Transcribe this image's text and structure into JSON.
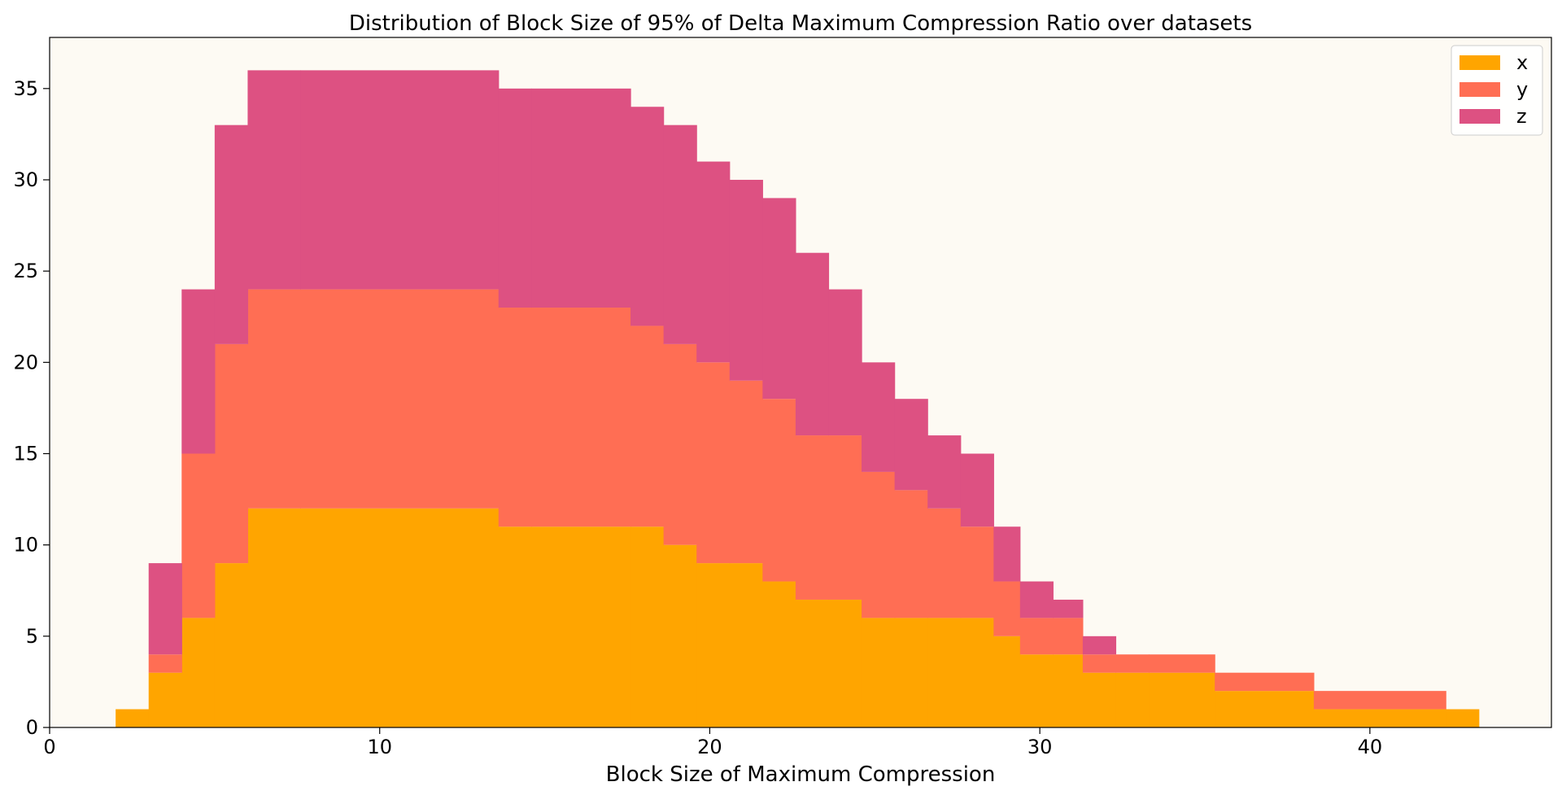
{
  "chart_data": {
    "type": "bar",
    "stacked": true,
    "histogram": true,
    "title": "Distribution of Block Size of 95% of Delta Maximum Compression Ratio over datasets",
    "xlabel": "Block Size of Maximum Compression",
    "ylabel": "",
    "xlim": [
      0,
      45.5
    ],
    "ylim": [
      0,
      37.8
    ],
    "xticks": [
      0,
      10,
      20,
      30,
      40
    ],
    "yticks": [
      0,
      5,
      10,
      15,
      20,
      25,
      30,
      35
    ],
    "grid": false,
    "legend_position": "top-right",
    "background_color": "#fdfaf3",
    "bin_edges": [
      2.0,
      3.0,
      4.0,
      5.0,
      6.0,
      7.6,
      13.6,
      14.6,
      17.6,
      18.6,
      19.6,
      20.6,
      21.6,
      22.6,
      23.6,
      24.6,
      25.6,
      26.6,
      27.6,
      28.6,
      29.4,
      30.4,
      31.3,
      32.3,
      33.3,
      35.3,
      38.3,
      42.3,
      43.3
    ],
    "series": [
      {
        "name": "x",
        "color": "#ffa500",
        "values": [
          1,
          3,
          6,
          9,
          12,
          12,
          11,
          11,
          11,
          10,
          9,
          9,
          8,
          7,
          7,
          6,
          6,
          6,
          6,
          5,
          4,
          4,
          3,
          3,
          3,
          2,
          1,
          1
        ]
      },
      {
        "name": "y",
        "color": "#ff6e54",
        "values": [
          0,
          1,
          9,
          12,
          12,
          12,
          12,
          12,
          11,
          11,
          11,
          10,
          10,
          9,
          9,
          8,
          7,
          6,
          5,
          3,
          2,
          2,
          1,
          1,
          1,
          1,
          1,
          0
        ]
      },
      {
        "name": "z",
        "color": "#dd5182",
        "values": [
          0,
          5,
          9,
          12,
          12,
          12,
          12,
          12,
          12,
          12,
          11,
          11,
          11,
          10,
          8,
          6,
          5,
          4,
          4,
          3,
          2,
          1,
          1,
          0,
          0,
          0,
          0,
          0
        ]
      }
    ]
  }
}
